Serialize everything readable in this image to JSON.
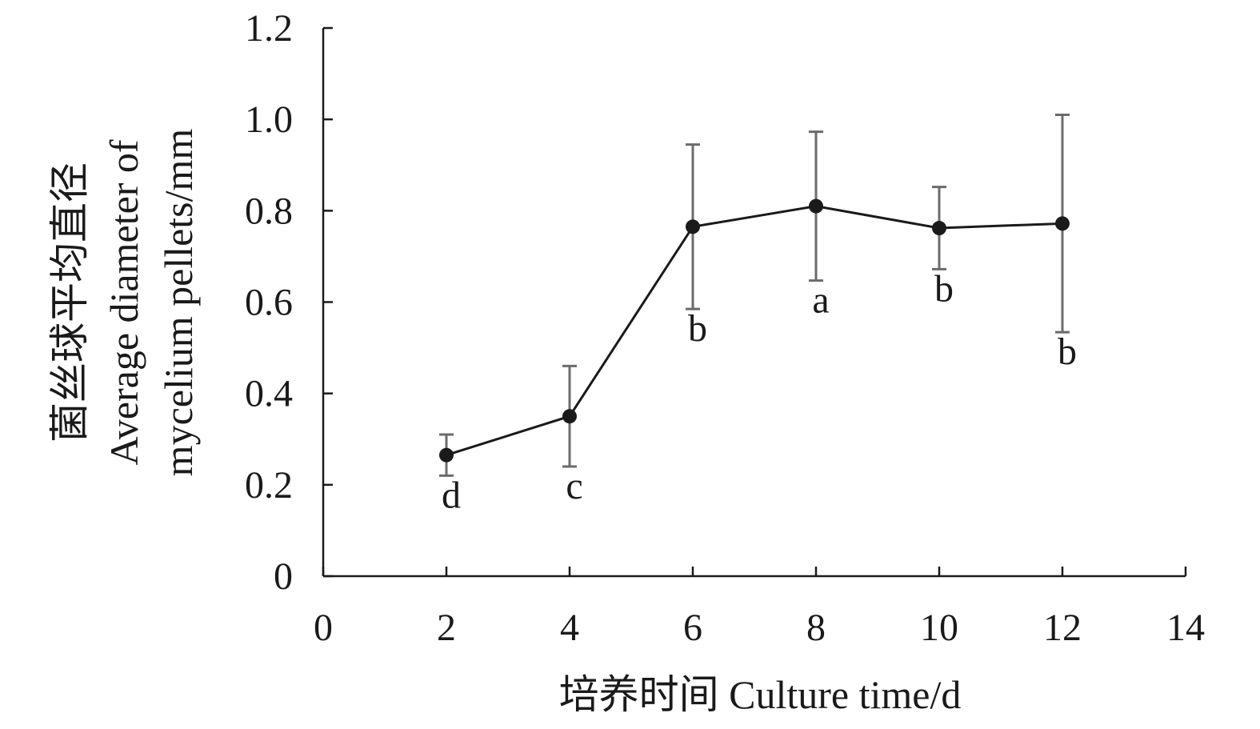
{
  "chart_data": {
    "type": "line",
    "xlabel": "培养时间 Culture time/d",
    "ylabel_lines": [
      "菌丝球平均直径",
      "Average diameter of",
      "mycelium pellets/mm"
    ],
    "xlim": [
      0,
      14
    ],
    "ylim": [
      0,
      1.2
    ],
    "x_ticks": [
      0,
      2,
      4,
      6,
      8,
      10,
      12,
      14
    ],
    "x_tick_labels": [
      "0",
      "2",
      "4",
      "6",
      "8",
      "10",
      "12",
      "14"
    ],
    "y_ticks": [
      0,
      0.2,
      0.4,
      0.6,
      0.8,
      1.0,
      1.2
    ],
    "y_tick_labels": [
      "0",
      "0.2",
      "0.4",
      "0.6",
      "0.8",
      "1.0",
      "1.2"
    ],
    "grid": false,
    "legend": "none",
    "series": [
      {
        "x": [
          2,
          4,
          6,
          8,
          10,
          12
        ],
        "y": [
          0.265,
          0.35,
          0.765,
          0.81,
          0.762,
          0.772
        ],
        "error": [
          0.045,
          0.11,
          0.18,
          0.163,
          0.09,
          0.238
        ],
        "significance": [
          "d",
          "c",
          "b",
          "a",
          "b",
          "b"
        ]
      }
    ],
    "colors": {
      "line": "#1a1a1a",
      "marker": "#1a1a1a",
      "error_bar": "#6b6b6b",
      "axis": "#1a1a1a"
    }
  }
}
